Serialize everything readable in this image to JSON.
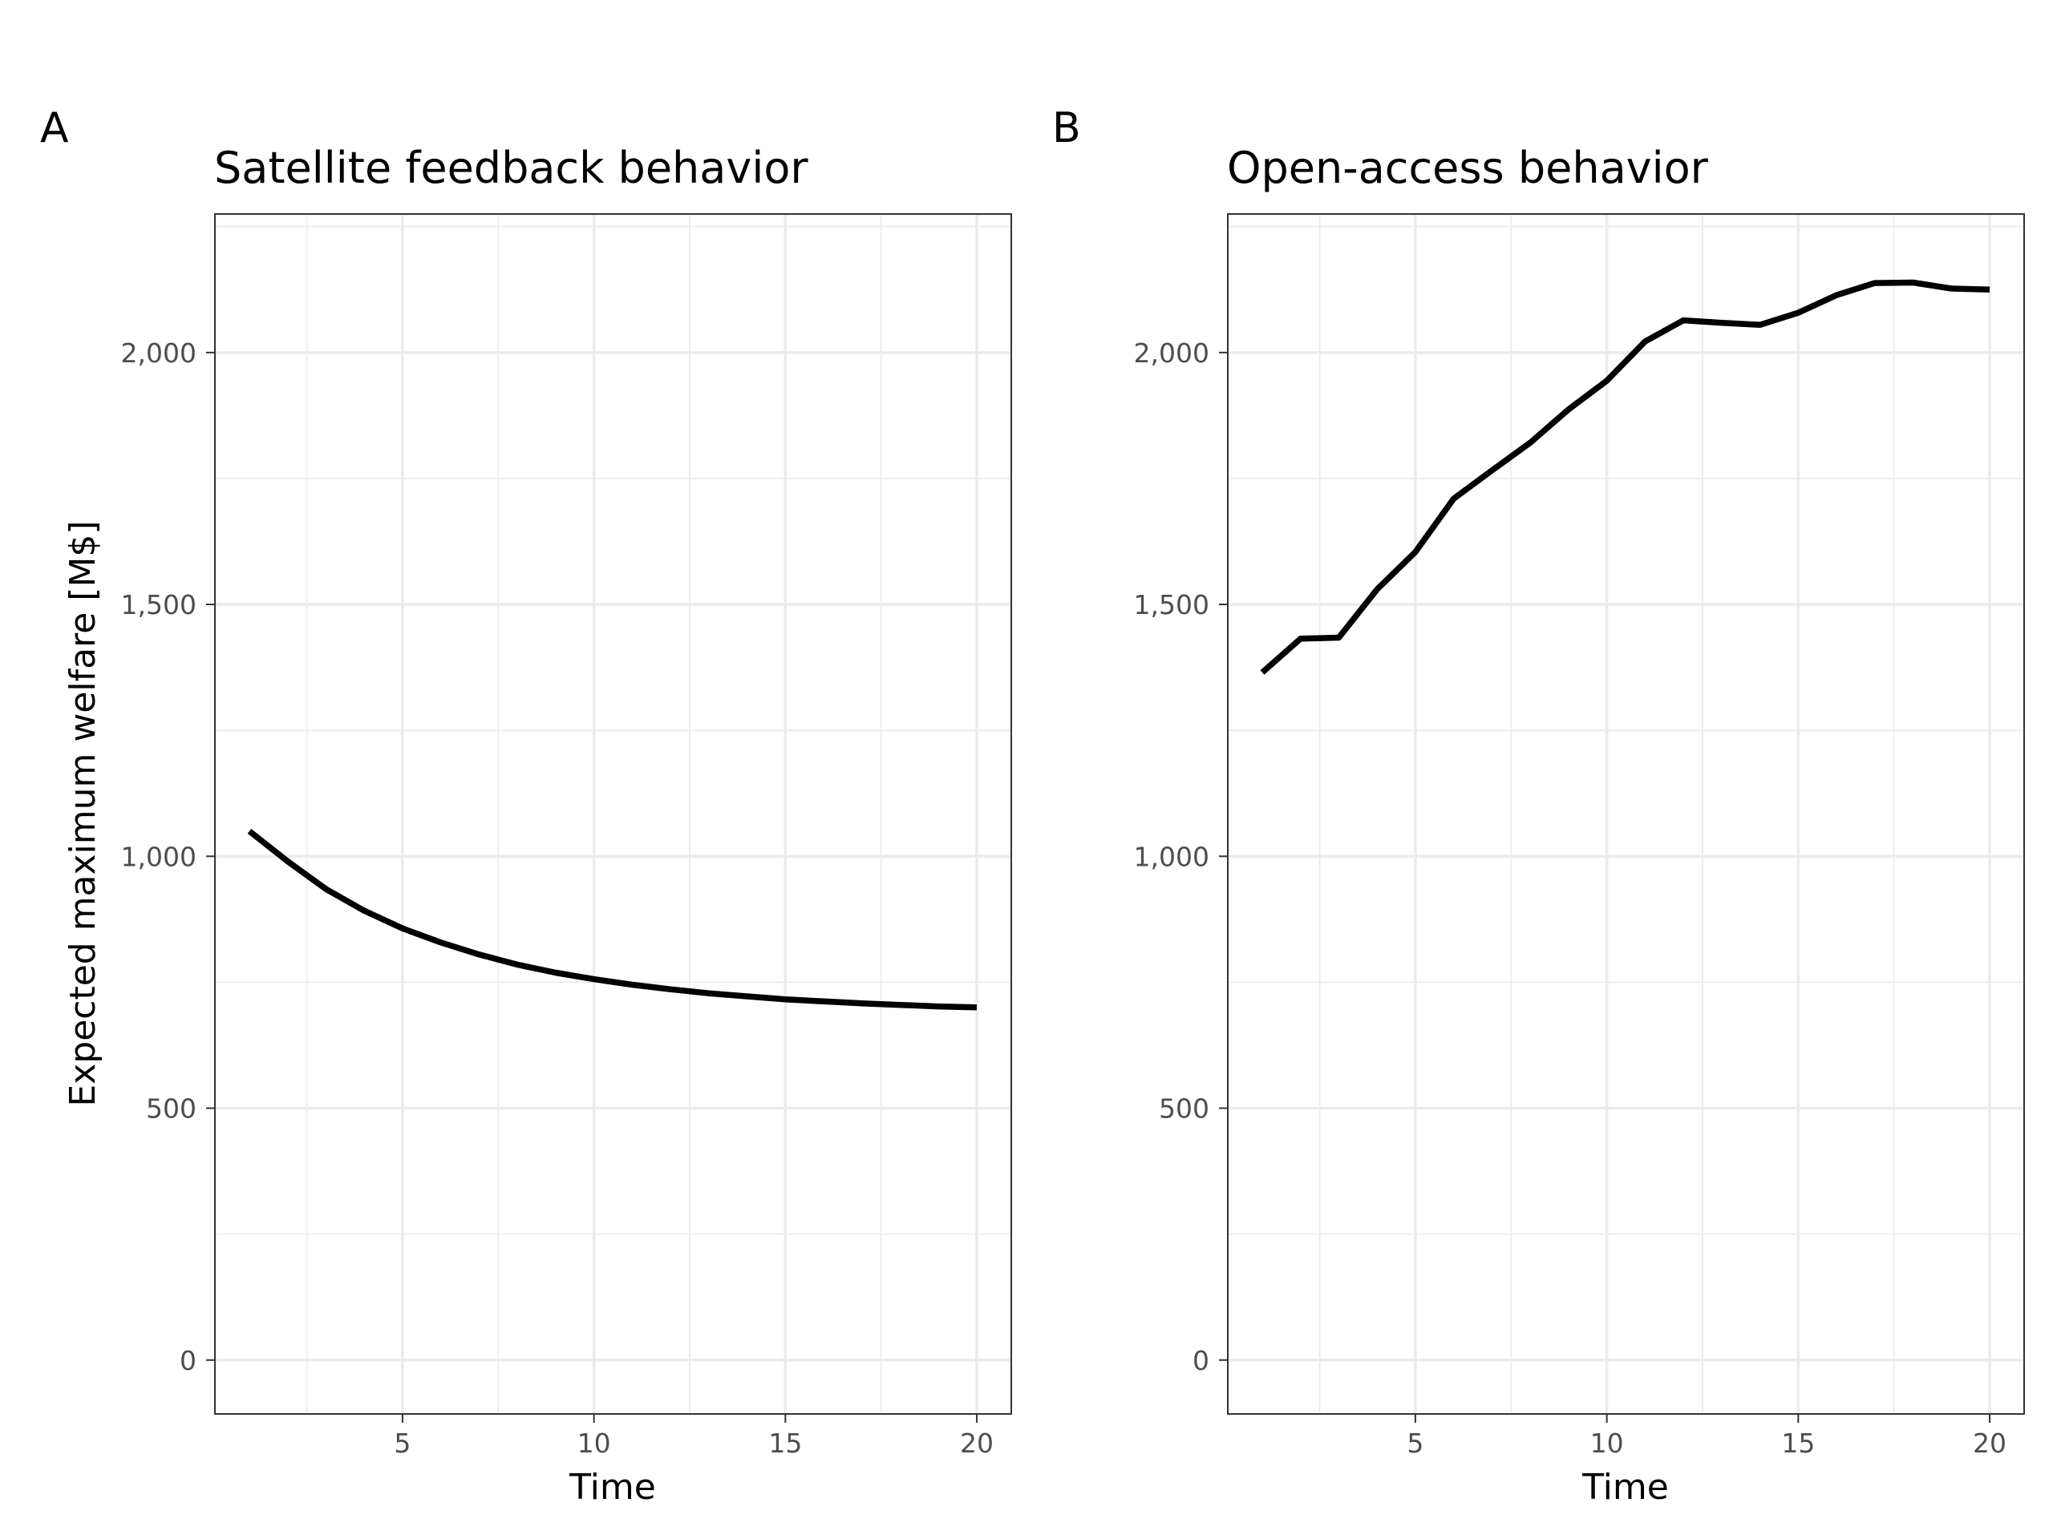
{
  "figure": {
    "ylabel": "Expected maximum welfare [M$]",
    "panels": [
      {
        "tag": "A",
        "title": "Satellite feedback behavior",
        "xlabel": "Time"
      },
      {
        "tag": "B",
        "title": "Open-access behavior",
        "xlabel": "Time"
      }
    ]
  },
  "chart_data": [
    {
      "type": "line",
      "title": "Satellite feedback behavior",
      "xlabel": "Time",
      "ylabel": "Expected maximum welfare [M$]",
      "xlim": [
        0.1,
        20.9
      ],
      "ylim": [
        -107,
        2275
      ],
      "xticks": [
        5,
        10,
        15,
        20
      ],
      "xtick_labels": [
        "5",
        "10",
        "15",
        "20"
      ],
      "yticks": [
        0,
        500,
        1000,
        1500,
        2000
      ],
      "ytick_labels": [
        "0",
        "500",
        "1,000",
        "1,500",
        "2,000"
      ],
      "grid": true,
      "x": [
        1,
        2,
        3,
        4,
        5,
        6,
        7,
        8,
        9,
        10,
        11,
        12,
        13,
        14,
        15,
        16,
        17,
        18,
        19,
        20
      ],
      "series": [
        {
          "values": [
            1050,
            990,
            935,
            892,
            857,
            829,
            805,
            785,
            769,
            756,
            745,
            736,
            728,
            722,
            716,
            712,
            708,
            705,
            702,
            700
          ]
        }
      ],
      "line_color": "#000000"
    },
    {
      "type": "line",
      "title": "Open-access behavior",
      "xlabel": "Time",
      "ylabel": "",
      "xlim": [
        0.1,
        20.9
      ],
      "ylim": [
        -107,
        2275
      ],
      "xticks": [
        5,
        10,
        15,
        20
      ],
      "xtick_labels": [
        "5",
        "10",
        "15",
        "20"
      ],
      "yticks": [
        0,
        500,
        1000,
        1500,
        2000
      ],
      "ytick_labels": [
        "0",
        "500",
        "1,000",
        "1,500",
        "2,000"
      ],
      "grid": true,
      "x": [
        1,
        2,
        3,
        4,
        5,
        6,
        7,
        8,
        9,
        10,
        11,
        12,
        13,
        14,
        15,
        16,
        17,
        18,
        19,
        20
      ],
      "series": [
        {
          "values": [
            1365,
            1432,
            1434,
            1530,
            1604,
            1710,
            1766,
            1821,
            1887,
            1944,
            2022,
            2064,
            2059,
            2055,
            2079,
            2114,
            2138,
            2139,
            2127,
            2125
          ]
        }
      ],
      "line_color": "#000000"
    }
  ]
}
